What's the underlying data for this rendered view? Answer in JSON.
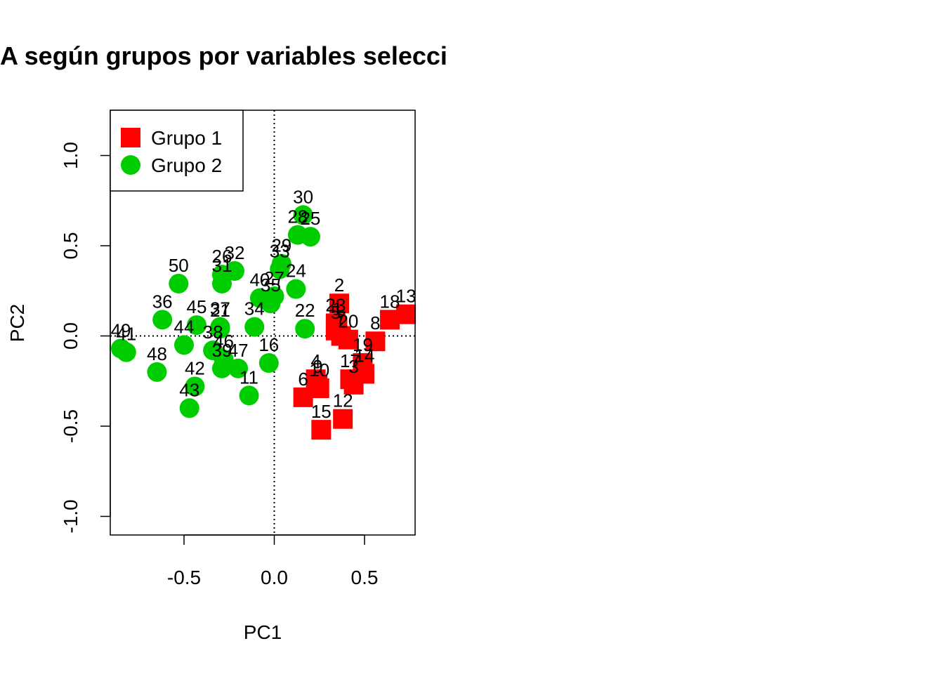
{
  "chart_data": {
    "type": "scatter",
    "title": "A según grupos por variables selecci",
    "xlabel": "PC1",
    "ylabel": "PC2",
    "xlim": [
      -0.9,
      0.78
    ],
    "ylim": [
      -1.1,
      1.25
    ],
    "x_ticks": [
      {
        "value": -0.5,
        "label": "-0.5"
      },
      {
        "value": 0.0,
        "label": "0.0"
      },
      {
        "value": 0.5,
        "label": "0.5"
      }
    ],
    "y_ticks": [
      {
        "value": -1.0,
        "label": "-1.0"
      },
      {
        "value": -0.5,
        "label": "-0.5"
      },
      {
        "value": 0.0,
        "label": "0.0"
      },
      {
        "value": 0.5,
        "label": "0.5"
      },
      {
        "value": 1.0,
        "label": "1.0"
      }
    ],
    "reference_lines": {
      "x": 0,
      "y": 0,
      "style": "dotted"
    },
    "grid": false,
    "legend": {
      "position": "top-left"
    },
    "series": [
      {
        "name": "Grupo 1",
        "color": "#ff0000",
        "marker": "square",
        "points": [
          {
            "label": "1",
            "x": 0.35,
            "y": 0.05
          },
          {
            "label": "2",
            "x": 0.36,
            "y": 0.18
          },
          {
            "label": "3",
            "x": 0.44,
            "y": -0.27
          },
          {
            "label": "4",
            "x": 0.23,
            "y": -0.24
          },
          {
            "label": "5",
            "x": 0.34,
            "y": 0.03
          },
          {
            "label": "6",
            "x": 0.16,
            "y": -0.34
          },
          {
            "label": "7",
            "x": 0.37,
            "y": 0.0
          },
          {
            "label": "8",
            "x": 0.56,
            "y": -0.03
          },
          {
            "label": "9",
            "x": 0.24,
            "y": -0.27
          },
          {
            "label": "10",
            "x": 0.25,
            "y": -0.29
          },
          {
            "label": "12",
            "x": 0.38,
            "y": -0.46
          },
          {
            "label": "13",
            "x": 0.73,
            "y": 0.12
          },
          {
            "label": "14",
            "x": 0.5,
            "y": -0.21
          },
          {
            "label": "15",
            "x": 0.26,
            "y": -0.52
          },
          {
            "label": "17",
            "x": 0.42,
            "y": -0.24
          },
          {
            "label": "18",
            "x": 0.64,
            "y": 0.09
          },
          {
            "label": "19",
            "x": 0.49,
            "y": -0.15
          },
          {
            "label": "20",
            "x": 0.41,
            "y": -0.02
          },
          {
            "label": "23",
            "x": 0.34,
            "y": 0.07
          }
        ]
      },
      {
        "name": "Grupo 2",
        "color": "#00cd00",
        "marker": "circle",
        "points": [
          {
            "label": "11",
            "x": -0.14,
            "y": -0.33
          },
          {
            "label": "16",
            "x": -0.03,
            "y": -0.15
          },
          {
            "label": "21",
            "x": -0.3,
            "y": 0.04
          },
          {
            "label": "22",
            "x": 0.17,
            "y": 0.04
          },
          {
            "label": "24",
            "x": 0.12,
            "y": 0.26
          },
          {
            "label": "25",
            "x": 0.2,
            "y": 0.55
          },
          {
            "label": "26",
            "x": -0.29,
            "y": 0.34
          },
          {
            "label": "27",
            "x": -0.0,
            "y": 0.22
          },
          {
            "label": "28",
            "x": 0.13,
            "y": 0.56
          },
          {
            "label": "29",
            "x": 0.04,
            "y": 0.4
          },
          {
            "label": "30",
            "x": 0.16,
            "y": 0.67
          },
          {
            "label": "31",
            "x": -0.29,
            "y": 0.29
          },
          {
            "label": "32",
            "x": -0.22,
            "y": 0.36
          },
          {
            "label": "33",
            "x": 0.03,
            "y": 0.37
          },
          {
            "label": "34",
            "x": -0.11,
            "y": 0.05
          },
          {
            "label": "35",
            "x": -0.02,
            "y": 0.18
          },
          {
            "label": "36",
            "x": -0.62,
            "y": 0.09
          },
          {
            "label": "37",
            "x": -0.3,
            "y": 0.05
          },
          {
            "label": "38",
            "x": -0.34,
            "y": -0.08
          },
          {
            "label": "39",
            "x": -0.29,
            "y": -0.18
          },
          {
            "label": "40",
            "x": -0.08,
            "y": 0.21
          },
          {
            "label": "41",
            "x": -0.82,
            "y": -0.09
          },
          {
            "label": "42",
            "x": -0.44,
            "y": -0.28
          },
          {
            "label": "43",
            "x": -0.47,
            "y": -0.4
          },
          {
            "label": "44",
            "x": -0.5,
            "y": -0.05
          },
          {
            "label": "45",
            "x": -0.43,
            "y": 0.06
          },
          {
            "label": "46",
            "x": -0.28,
            "y": -0.13
          },
          {
            "label": "47",
            "x": -0.2,
            "y": -0.18
          },
          {
            "label": "48",
            "x": -0.65,
            "y": -0.2
          },
          {
            "label": "49",
            "x": -0.85,
            "y": -0.07
          },
          {
            "label": "50",
            "x": -0.53,
            "y": 0.29
          }
        ]
      }
    ]
  }
}
